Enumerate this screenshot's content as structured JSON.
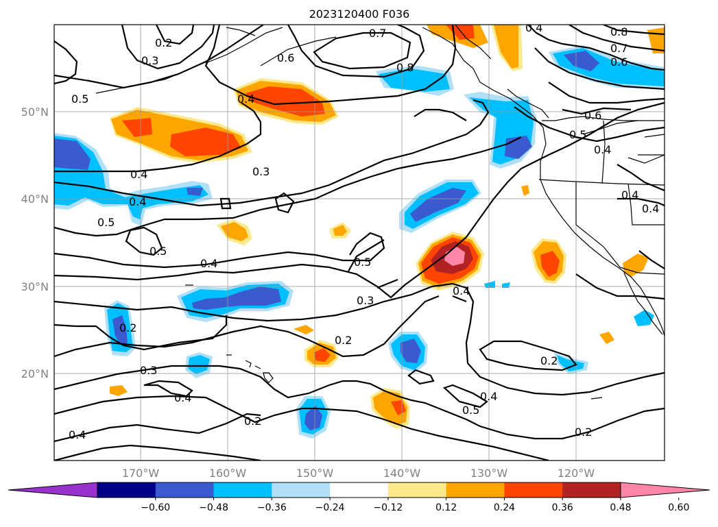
{
  "title": "2023120400 F036",
  "lat_labels": [
    "50°N",
    "40°N",
    "30°N",
    "20°N"
  ],
  "lon_labels": [
    "170°W",
    "160°W",
    "150°W",
    "140°W",
    "130°W",
    "120°W"
  ],
  "contour_labels": [
    "0.7",
    "0.8",
    "0.2",
    "0.3",
    "0.5",
    "0.6",
    "0.4",
    "0.4",
    "0.8",
    "0.7",
    "0.6",
    "0.4",
    "0.6",
    "0.5",
    "0.4",
    "0.3",
    "0.4",
    "0.4",
    "0.5",
    "0.5",
    "0.4",
    "0.3",
    "0.5",
    "0.4",
    "0.2",
    "0.2",
    "0.3",
    "0.4",
    "0.2",
    "0.4",
    "0.5",
    "0.2",
    "0.2",
    "0.4",
    "0.4"
  ],
  "colorbar": {
    "colors": [
      "#9932cc",
      "#00008b",
      "#3a5bcf",
      "#00bfff",
      "#b0e0f8",
      "#ffffff",
      "#fbe98c",
      "#ffa500",
      "#ff4500",
      "#b22222",
      "#ff85a8"
    ],
    "tick_labels": [
      "−0.60",
      "−0.48",
      "−0.36",
      "−0.24",
      "−0.12",
      "0.12",
      "0.24",
      "0.36",
      "0.48",
      "0.60"
    ]
  }
}
